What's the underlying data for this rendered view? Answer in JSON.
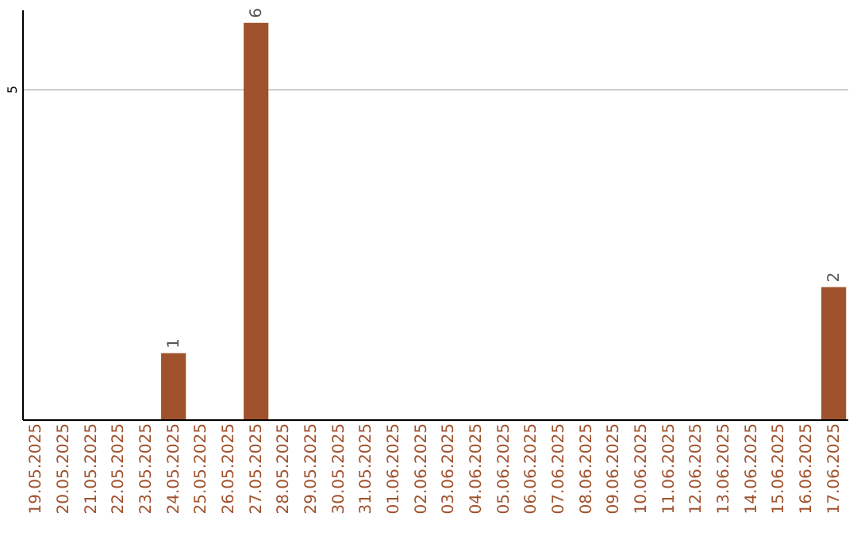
{
  "chart_data": {
    "type": "bar",
    "categories": [
      "19.05.2025",
      "20.05.2025",
      "21.05.2025",
      "22.05.2025",
      "23.05.2025",
      "24.05.2025",
      "25.05.2025",
      "26.05.2025",
      "27.05.2025",
      "28.05.2025",
      "29.05.2025",
      "30.05.2025",
      "31.05.2025",
      "01.06.2025",
      "02.06.2025",
      "03.06.2025",
      "04.06.2025",
      "05.06.2025",
      "06.06.2025",
      "07.06.2025",
      "08.06.2025",
      "09.06.2025",
      "10.06.2025",
      "11.06.2025",
      "12.06.2025",
      "13.06.2025",
      "14.06.2025",
      "15.06.2025",
      "16.06.2025",
      "17.06.2025"
    ],
    "values": [
      0,
      0,
      0,
      0,
      0,
      1,
      0,
      0,
      6,
      0,
      0,
      0,
      0,
      0,
      0,
      0,
      0,
      0,
      0,
      0,
      0,
      0,
      0,
      0,
      0,
      0,
      0,
      0,
      0,
      2
    ],
    "value_labels": [
      null,
      null,
      null,
      null,
      null,
      "1",
      null,
      null,
      "6",
      null,
      null,
      null,
      null,
      null,
      null,
      null,
      null,
      null,
      null,
      null,
      null,
      null,
      null,
      null,
      null,
      null,
      null,
      null,
      null,
      "2"
    ],
    "color": "#a0522d",
    "ylim": [
      0,
      6.2
    ],
    "yticks": [
      5
    ],
    "grid": "y"
  }
}
